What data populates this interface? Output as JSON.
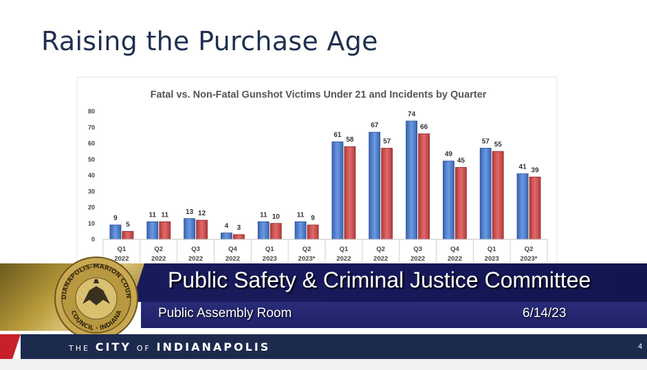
{
  "slide": {
    "title": "Raising the Purchase Age",
    "page_number": "4"
  },
  "chart_data": {
    "type": "bar",
    "title": "Fatal vs. Non-Fatal Gunshot Victims Under 21 and Incidents by Quarter",
    "categories": [
      [
        "Q1",
        "2022"
      ],
      [
        "Q2",
        "2022"
      ],
      [
        "Q3",
        "2022"
      ],
      [
        "Q4",
        "2022"
      ],
      [
        "Q1",
        "2023"
      ],
      [
        "Q2",
        "2023*"
      ],
      [
        "Q1",
        "2022"
      ],
      [
        "Q2",
        "2022"
      ],
      [
        "Q3",
        "2022"
      ],
      [
        "Q4",
        "2022"
      ],
      [
        "Q1",
        "2023"
      ],
      [
        "Q2",
        "2023*"
      ]
    ],
    "series": [
      {
        "color": "#4a7ac8",
        "values": [
          9,
          11,
          13,
          4,
          11,
          11,
          61,
          67,
          74,
          49,
          57,
          41
        ]
      },
      {
        "color": "#c84a4a",
        "values": [
          5,
          11,
          12,
          3,
          10,
          9,
          58,
          57,
          66,
          45,
          55,
          39
        ]
      }
    ],
    "ylim": [
      0,
      80
    ],
    "yticks": [
      0,
      10,
      20,
      30,
      40,
      50,
      60,
      70,
      80
    ],
    "grid": false,
    "legend": "none"
  },
  "banner": {
    "committee": "Public Safety & Criminal Justice Committee",
    "room": "Public Assembly Room",
    "date": "6/14/23",
    "seal_text": "INDIANAPOLIS-MARION COUNTY CITY-COUNTY COUNCIL INDIANA"
  },
  "footer": {
    "the": "THE",
    "city": "CITY",
    "of": "OF",
    "indianapolis": "INDIANAPOLIS"
  }
}
